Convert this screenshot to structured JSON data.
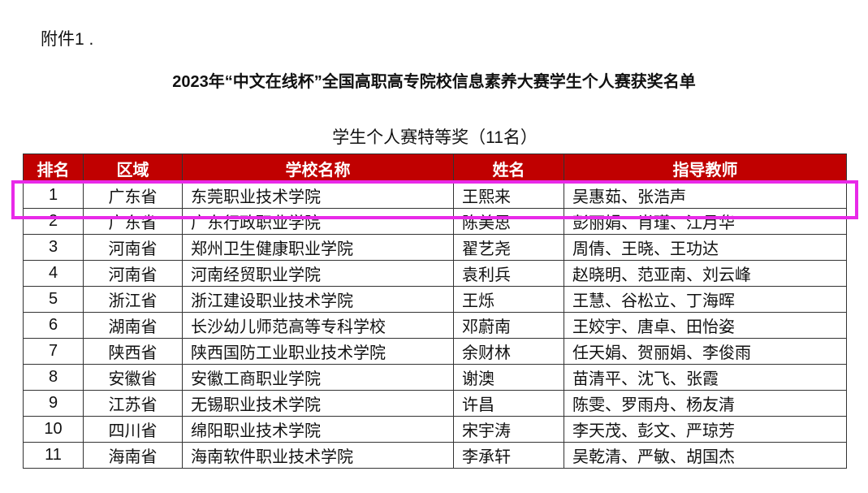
{
  "document": {
    "attachment_label": "附件1 .",
    "title": "2023年“中文在线杯”全国高职高专院校信息素养大赛学生个人赛获奖名单",
    "subtitle": "学生个人赛特等奖（11名）",
    "highlight_color": "#e829e8",
    "header_color": "#c00000",
    "table": {
      "headers": [
        "排名",
        "区域",
        "学校名称",
        "姓名",
        "指导教师"
      ],
      "rows": [
        [
          "1",
          "广东省",
          "东莞职业技术学院",
          "王熙来",
          "吴惠茹、张浩声"
        ],
        [
          "2",
          "广东省",
          "广东行政职业学院",
          "陈美思",
          "彭丽娟、肖瑾、江月华"
        ],
        [
          "3",
          "河南省",
          "郑州卫生健康职业学院",
          "翟艺尧",
          "周倩、王晓、王功达"
        ],
        [
          "4",
          "河南省",
          "河南经贸职业学院",
          "袁利兵",
          "赵晓明、范亚南、刘云峰"
        ],
        [
          "5",
          "浙江省",
          "浙江建设职业技术学院",
          "王烁",
          "王慧、谷松立、丁海晖"
        ],
        [
          "6",
          "湖南省",
          "长沙幼儿师范高等专科学校",
          "邓蔚南",
          "王姣宇、唐卓、田怡姿"
        ],
        [
          "7",
          "陕西省",
          "陕西国防工业职业技术学院",
          "余财林",
          "任天娟、贺丽娟、李俊雨"
        ],
        [
          "8",
          "安徽省",
          "安徽工商职业学院",
          "谢澳",
          "苗清平、沈飞、张霞"
        ],
        [
          "9",
          "江苏省",
          "无锡职业技术学院",
          "许昌",
          "陈雯、罗雨舟、杨友清"
        ],
        [
          "10",
          "四川省",
          "绵阳职业技术学院",
          "宋宇涛",
          "李天茂、彭文、严琼芳"
        ],
        [
          "11",
          "海南省",
          "海南软件职业技术学院",
          "李承轩",
          "吴乾清、严敏、胡国杰"
        ]
      ]
    }
  }
}
